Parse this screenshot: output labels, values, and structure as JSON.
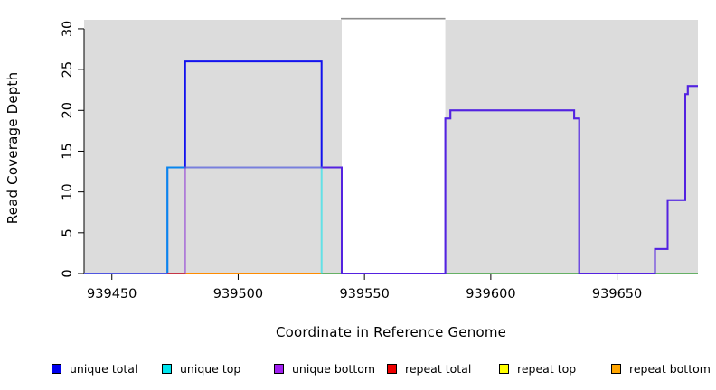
{
  "figure": {
    "xlabel": "Coordinate in Reference Genome",
    "ylabel": "Read Coverage Depth"
  },
  "legend": [
    {
      "label": "unique total",
      "color": "#0000EE"
    },
    {
      "label": "unique top",
      "color": "#00E5EE"
    },
    {
      "label": "unique bottom",
      "color": "#A020F0"
    },
    {
      "label": "repeat total",
      "color": "#EE0000"
    },
    {
      "label": "repeat top",
      "color": "#FFFF00"
    },
    {
      "label": "repeat bottom",
      "color": "#FFA500"
    }
  ],
  "chart_data": {
    "type": "line",
    "subtype": "step-coverage",
    "title": "",
    "xlabel": "Coordinate in Reference Genome",
    "ylabel": "Read Coverage Depth",
    "x_ticks": [
      939450,
      939500,
      939550,
      939600,
      939650
    ],
    "y_ticks": [
      0,
      5,
      10,
      15,
      20,
      25,
      30
    ],
    "x_range": [
      939439,
      939682
    ],
    "y_range": [
      0,
      31.1
    ],
    "grid": false,
    "legend_position": "bottom",
    "background": {
      "panel_color": "#DCDCDC",
      "gap_region": {
        "x_start": 939541,
        "x_end": 939582,
        "color": "#FFFFFF",
        "top_border_color": "#8C8C8C"
      }
    },
    "series": [
      {
        "name": "zero-baseline-green",
        "in_legend": false,
        "color": "#3CB83C",
        "opacity": 0.8,
        "width": 1.6,
        "points": [
          [
            939439,
            0
          ],
          [
            939682,
            0
          ]
        ]
      },
      {
        "name": "repeat bottom",
        "in_legend": true,
        "color": "#FF8C00",
        "opacity": 1,
        "width": 2,
        "points": [
          [
            939479,
            0
          ],
          [
            939533,
            0
          ]
        ]
      },
      {
        "name": "unique total",
        "in_legend": true,
        "color": "#1212EE",
        "opacity": 1,
        "width": 2,
        "points": [
          [
            939439,
            0
          ],
          [
            939472,
            0
          ],
          [
            939472,
            13
          ],
          [
            939479,
            13
          ],
          [
            939479,
            26
          ],
          [
            939533,
            26
          ],
          [
            939533,
            13
          ],
          [
            939541,
            13
          ],
          [
            939541,
            0
          ],
          [
            939582,
            0
          ],
          [
            939582,
            19
          ],
          [
            939584,
            19
          ],
          [
            939584,
            20
          ],
          [
            939633,
            20
          ],
          [
            939633,
            19
          ],
          [
            939635,
            19
          ],
          [
            939635,
            0
          ],
          [
            939665,
            0
          ],
          [
            939665,
            3
          ],
          [
            939670,
            3
          ],
          [
            939670,
            9
          ],
          [
            939677,
            9
          ],
          [
            939677,
            22
          ],
          [
            939678,
            22
          ],
          [
            939678,
            23
          ],
          [
            939682,
            23
          ]
        ]
      },
      {
        "name": "unique top",
        "in_legend": true,
        "color": "#00E5EE",
        "opacity": 0.55,
        "width": 2,
        "points": [
          [
            939439,
            0
          ],
          [
            939472,
            0
          ],
          [
            939472,
            13
          ],
          [
            939533,
            13
          ],
          [
            939533,
            0
          ]
        ]
      },
      {
        "name": "unique bottom",
        "in_legend": true,
        "color": "#8B2FD6",
        "opacity": 0.55,
        "width": 2,
        "points": [
          [
            939439,
            0
          ],
          [
            939479,
            0
          ],
          [
            939479,
            13
          ],
          [
            939541,
            13
          ],
          [
            939541,
            0
          ],
          [
            939582,
            0
          ],
          [
            939582,
            19
          ],
          [
            939584,
            19
          ],
          [
            939584,
            20
          ],
          [
            939633,
            20
          ],
          [
            939633,
            19
          ],
          [
            939635,
            19
          ],
          [
            939635,
            0
          ],
          [
            939665,
            0
          ],
          [
            939665,
            3
          ],
          [
            939670,
            3
          ],
          [
            939670,
            9
          ],
          [
            939677,
            9
          ],
          [
            939677,
            22
          ],
          [
            939678,
            22
          ],
          [
            939678,
            23
          ],
          [
            939682,
            23
          ]
        ]
      },
      {
        "name": "repeat total",
        "in_legend": true,
        "color": "#E62020",
        "opacity": 0.7,
        "width": 2,
        "points": [
          [
            939472,
            0
          ],
          [
            939479,
            0
          ]
        ]
      }
    ]
  }
}
